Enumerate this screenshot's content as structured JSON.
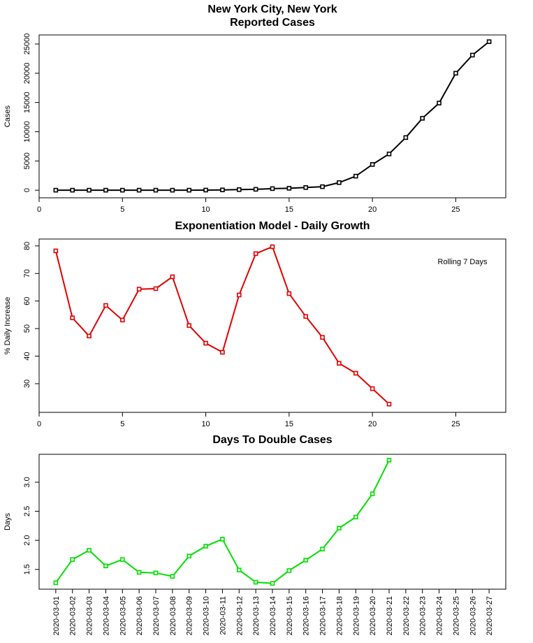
{
  "chart_data": [
    {
      "type": "line",
      "title": "New York City, New York",
      "subtitle": "Reported Cases",
      "y_label": "Cases",
      "x": [
        1,
        2,
        3,
        4,
        5,
        6,
        7,
        8,
        9,
        10,
        11,
        12,
        13,
        14,
        15,
        16,
        17,
        18,
        19,
        20,
        21,
        22,
        23,
        24,
        25,
        26,
        27
      ],
      "series": [
        {
          "color": "#000000",
          "values": [
            1,
            1,
            1,
            1,
            1,
            1,
            1,
            1,
            1,
            20,
            50,
            100,
            150,
            270,
            330,
            460,
            600,
            1300,
            2400,
            4400,
            6200,
            9000,
            12300,
            14900,
            20000,
            23100,
            25400
          ]
        }
      ],
      "xlim": [
        0,
        28
      ],
      "xticks": [
        0,
        5,
        10,
        15,
        20,
        25
      ],
      "ylim": [
        -1300,
        26550
      ],
      "yticks": [
        0,
        5000,
        10000,
        15000,
        20000,
        25000
      ]
    },
    {
      "type": "line",
      "title": "Exponentiation Model - Daily Growth",
      "y_label": "% Daily Increase",
      "annotation": "Rolling 7 Days",
      "x": [
        1,
        2,
        3,
        4,
        5,
        6,
        7,
        8,
        9,
        10,
        11,
        12,
        13,
        14,
        15,
        16,
        17,
        18,
        19,
        20,
        21
      ],
      "series": [
        {
          "color": "#e00000",
          "values": [
            78.2,
            53.9,
            47.3,
            58.4,
            53.1,
            64.3,
            64.5,
            68.8,
            51.1,
            44.7,
            41.4,
            62.2,
            77.2,
            79.7,
            62.7,
            54.4,
            46.8,
            37.4,
            33.8,
            28.2,
            22.6
          ]
        }
      ],
      "xlim": [
        0,
        28
      ],
      "xticks": [
        0,
        5,
        10,
        15,
        20,
        25
      ],
      "ylim": [
        19.6,
        82.5
      ],
      "yticks": [
        30,
        40,
        50,
        60,
        70,
        80
      ]
    },
    {
      "type": "line",
      "title": "Days To Double Cases",
      "y_label": "Days",
      "categories": [
        "2020-03-01",
        "2020-03-02",
        "2020-03-03",
        "2020-03-04",
        "2020-03-05",
        "2020-03-06",
        "2020-03-07",
        "2020-03-08",
        "2020-03-09",
        "2020-03-10",
        "2020-03-11",
        "2020-03-12",
        "2020-03-13",
        "2020-03-14",
        "2020-03-15",
        "2020-03-16",
        "2020-03-17",
        "2020-03-18",
        "2020-03-19",
        "2020-03-20",
        "2020-03-21",
        "2020-03-22",
        "2020-03-23",
        "2020-03-24",
        "2020-03-25",
        "2020-03-26",
        "2020-03-27"
      ],
      "series": [
        {
          "color": "#00e000",
          "values": [
            1.27,
            1.67,
            1.83,
            1.56,
            1.67,
            1.45,
            1.44,
            1.38,
            1.73,
            1.9,
            2.02,
            1.49,
            1.28,
            1.26,
            1.48,
            1.66,
            1.85,
            2.21,
            2.4,
            2.8,
            3.38,
            null,
            null,
            null,
            null,
            null,
            null
          ]
        }
      ],
      "ylim": [
        1.16,
        3.48
      ],
      "yticks": [
        1.5,
        {
          "value": 2.0,
          "label": "2.0"
        },
        2.5,
        {
          "value": 3.0,
          "label": "3.0"
        }
      ]
    }
  ]
}
